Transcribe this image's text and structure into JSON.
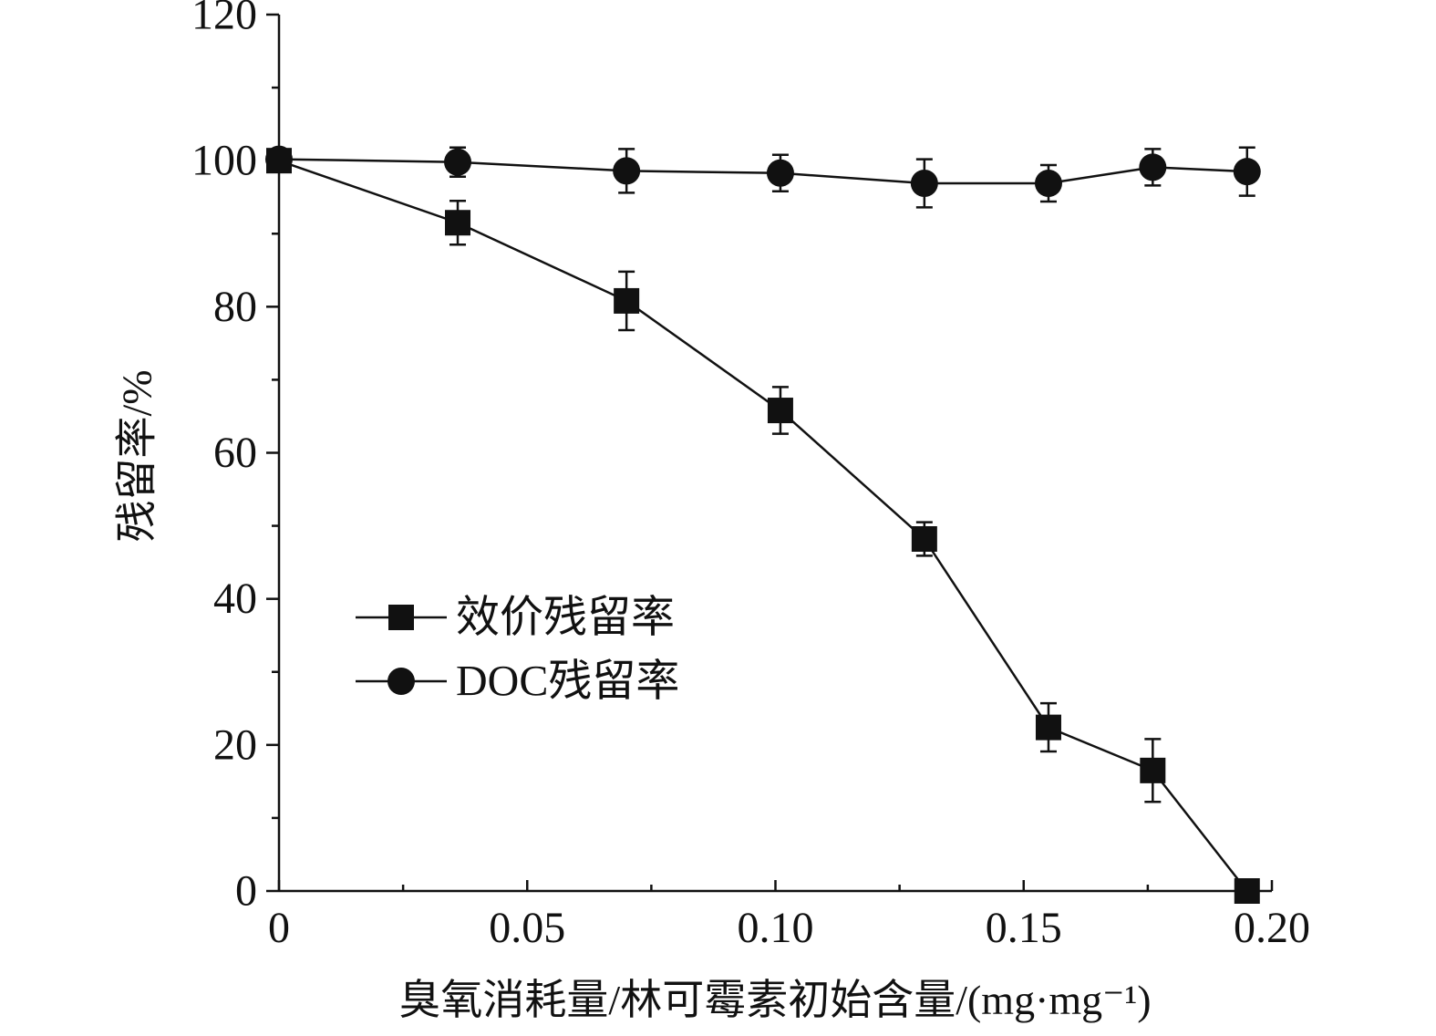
{
  "chart_data": {
    "type": "line",
    "xlabel": "臭氧消耗量/林可霉素初始含量/(mg·mg⁻¹)",
    "ylabel": "残留率/%",
    "xlim": [
      0,
      0.2
    ],
    "ylim": [
      0,
      120
    ],
    "x_ticks": [
      "0",
      "0.05",
      "0.10",
      "0.15",
      "0.20"
    ],
    "y_ticks": [
      "0",
      "20",
      "40",
      "60",
      "80",
      "100",
      "120"
    ],
    "grid": false,
    "legend_position": "center-left",
    "series": [
      {
        "name": "效价残留率",
        "marker": "square",
        "color": "#111111",
        "points": [
          {
            "x": 0,
            "y": 100,
            "err": 0
          },
          {
            "x": 0.036,
            "y": 91.5,
            "err": 3
          },
          {
            "x": 0.07,
            "y": 80.8,
            "err": 4
          },
          {
            "x": 0.101,
            "y": 65.8,
            "err": 3.2
          },
          {
            "x": 0.13,
            "y": 48.2,
            "err": 2.3
          },
          {
            "x": 0.155,
            "y": 22.4,
            "err": 3.3
          },
          {
            "x": 0.176,
            "y": 16.5,
            "err": 4.3
          },
          {
            "x": 0.195,
            "y": 0,
            "err": 0
          }
        ]
      },
      {
        "name": "DOC残留率",
        "marker": "circle",
        "color": "#111111",
        "points": [
          {
            "x": 0,
            "y": 100.2,
            "err": 0
          },
          {
            "x": 0.036,
            "y": 99.8,
            "err": 2
          },
          {
            "x": 0.07,
            "y": 98.6,
            "err": 3
          },
          {
            "x": 0.101,
            "y": 98.3,
            "err": 2.5
          },
          {
            "x": 0.13,
            "y": 96.9,
            "err": 3.3
          },
          {
            "x": 0.155,
            "y": 96.9,
            "err": 2.5
          },
          {
            "x": 0.176,
            "y": 99.1,
            "err": 2.5
          },
          {
            "x": 0.195,
            "y": 98.5,
            "err": 3.3
          }
        ]
      }
    ]
  }
}
